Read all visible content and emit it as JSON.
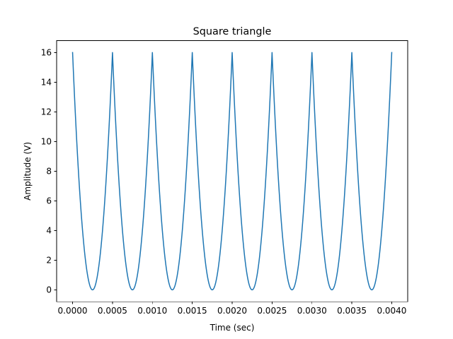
{
  "chart_data": {
    "type": "line",
    "title": "Square triangle",
    "xlabel": "Time (sec)",
    "ylabel": "Amplitude (V)",
    "xlim": [
      -0.0002,
      0.0042
    ],
    "ylim": [
      -0.8,
      16.8
    ],
    "xticks": [
      0,
      0.0005,
      0.001,
      0.0015,
      0.002,
      0.0025,
      0.003,
      0.0035,
      0.004
    ],
    "xtick_labels": [
      "0.0000",
      "0.0005",
      "0.0010",
      "0.0015",
      "0.0020",
      "0.0025",
      "0.0030",
      "0.0035",
      "0.0040"
    ],
    "yticks": [
      0,
      2,
      4,
      6,
      8,
      10,
      12,
      14,
      16
    ],
    "ytick_labels": [
      "0",
      "2",
      "4",
      "6",
      "8",
      "10",
      "12",
      "14",
      "16"
    ],
    "grid": false,
    "legend": "none",
    "series": [
      {
        "color": "#1f77b4",
        "x": [
          0,
          0.00025,
          0.0005,
          0.00075,
          0.001,
          0.00125,
          0.0015,
          0.00175,
          0.002,
          0.00225,
          0.0025,
          0.00275,
          0.003,
          0.00325,
          0.0035,
          0.00375,
          0.004
        ],
        "y": [
          16,
          0,
          16,
          0,
          16,
          0,
          16,
          0,
          16,
          0,
          16,
          0,
          16,
          0,
          16,
          0,
          16
        ]
      }
    ]
  }
}
